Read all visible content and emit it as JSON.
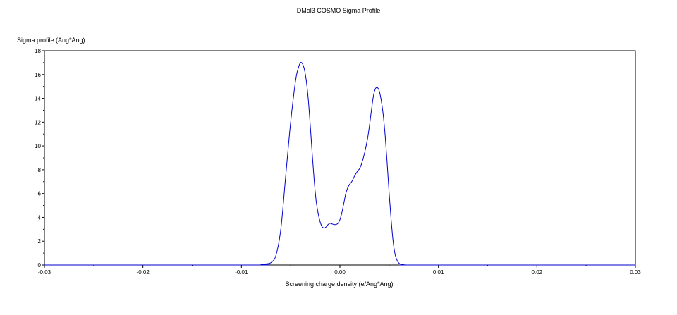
{
  "chart_data": {
    "type": "line",
    "title": "DMol3 COSMO Sigma Profile",
    "xlabel": "Screening charge density (e/Ang*Ang)",
    "ylabel": "Sigma profile (Ang*Ang)",
    "xlim": [
      -0.03,
      0.03
    ],
    "ylim": [
      0,
      18
    ],
    "x_ticks": [
      "-0.03",
      "-0.02",
      "-0.01",
      "0.00",
      "0.01",
      "0.02",
      "0.03"
    ],
    "y_ticks": [
      "0",
      "2",
      "4",
      "6",
      "8",
      "10",
      "12",
      "14",
      "16",
      "18"
    ],
    "grid": false,
    "legend": "none",
    "series": [
      {
        "color": "#0000cc",
        "x": [
          -0.03,
          -0.009,
          -0.008,
          -0.0075,
          -0.007,
          -0.0065,
          -0.006,
          -0.0055,
          -0.005,
          -0.0045,
          -0.0042,
          -0.004,
          -0.0038,
          -0.0036,
          -0.0034,
          -0.0032,
          -0.003,
          -0.0028,
          -0.0026,
          -0.0024,
          -0.0022,
          -0.002,
          -0.0018,
          -0.0016,
          -0.0014,
          -0.0012,
          -0.001,
          -0.0008,
          -0.0006,
          -0.0004,
          -0.0002,
          0.0,
          0.0002,
          0.0004,
          0.0006,
          0.0008,
          0.001,
          0.0012,
          0.0015,
          0.0018,
          0.002,
          0.0022,
          0.0025,
          0.0028,
          0.003,
          0.0032,
          0.0034,
          0.0036,
          0.0038,
          0.004,
          0.0042,
          0.0044,
          0.0046,
          0.0048,
          0.005,
          0.0052,
          0.0054,
          0.0056,
          0.0058,
          0.006,
          0.0062,
          0.0065,
          0.007,
          0.008,
          0.03
        ],
        "y": [
          0,
          0,
          0.05,
          0.1,
          0.2,
          0.8,
          3.0,
          7.5,
          12.0,
          15.5,
          16.6,
          17.0,
          16.9,
          16.4,
          15.4,
          13.8,
          11.6,
          9.2,
          7.0,
          5.3,
          4.3,
          3.6,
          3.2,
          3.1,
          3.2,
          3.4,
          3.5,
          3.45,
          3.4,
          3.4,
          3.5,
          3.8,
          4.4,
          5.2,
          6.0,
          6.5,
          6.8,
          7.0,
          7.5,
          7.9,
          8.1,
          8.5,
          9.4,
          10.6,
          11.7,
          13.0,
          14.2,
          14.8,
          14.9,
          14.6,
          13.8,
          12.6,
          10.8,
          8.5,
          6.0,
          3.8,
          2.0,
          0.9,
          0.4,
          0.15,
          0.05,
          0.02,
          0,
          0,
          0
        ]
      }
    ]
  }
}
